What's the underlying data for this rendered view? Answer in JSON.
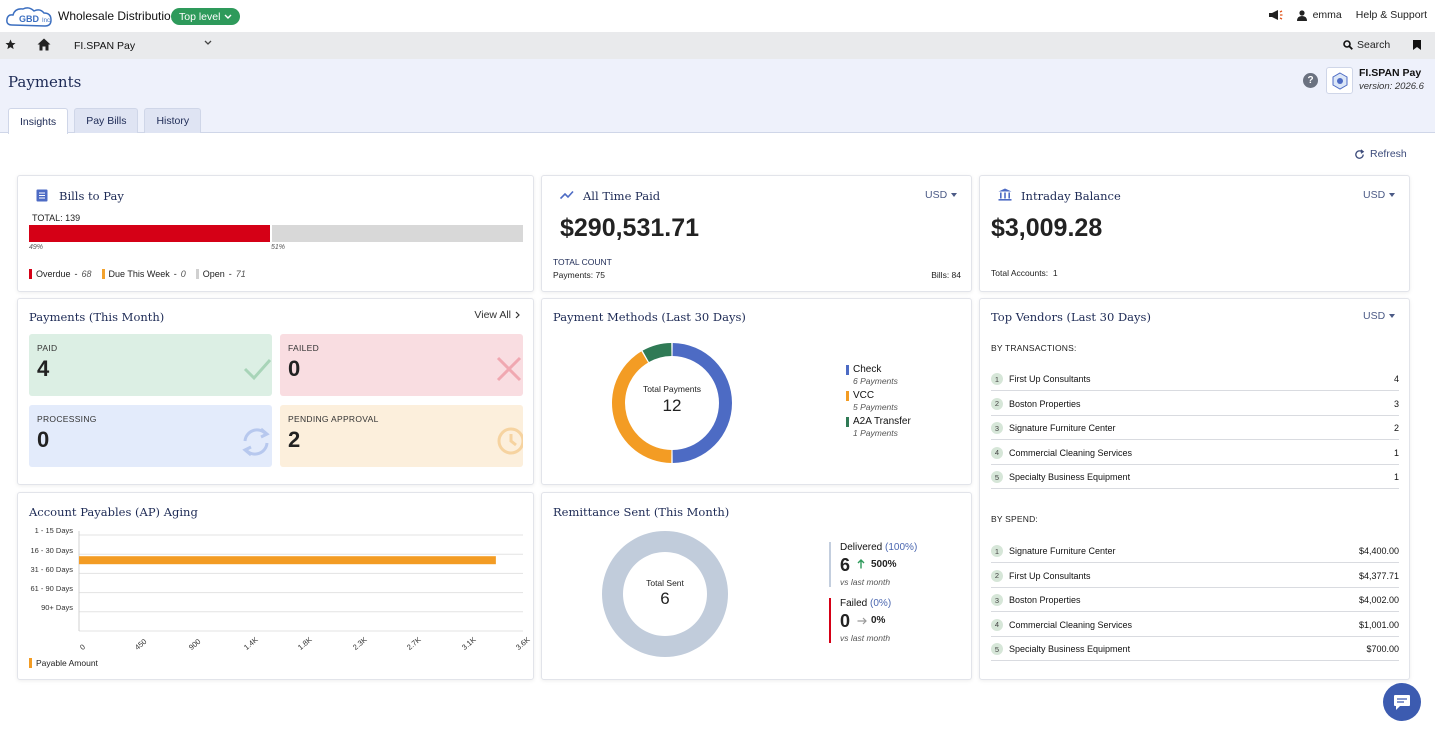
{
  "topbar": {
    "logo_text": "GBD Inc",
    "app_title": "Wholesale Distribution",
    "level_pill": "Top level",
    "user": "emma",
    "help": "Help & Support"
  },
  "navbar": {
    "app_name": "FI.SPAN Pay",
    "search": "Search"
  },
  "header": {
    "title": "Payments",
    "product": "FI.SPAN Pay",
    "version": "version: 2026.6",
    "help_icon": "?",
    "tabs": [
      "Insights",
      "Pay Bills",
      "History"
    ]
  },
  "refresh_label": "Refresh",
  "bills_to_pay": {
    "title": "Bills to Pay",
    "total": "TOTAL: 139",
    "overdue_pct_label": "49%",
    "open_pct_label": "51%",
    "overdue_fraction": 0.49,
    "legend": [
      {
        "label": "Overdue",
        "value": "68",
        "color": "#d50016"
      },
      {
        "label": "Due This Week",
        "value": "0",
        "color": "#f3a22c"
      },
      {
        "label": "Open",
        "value": "71",
        "color": "#d0d0d0"
      }
    ]
  },
  "all_time_paid": {
    "title": "All Time Paid",
    "currency": "USD",
    "amount": "$290,531.71",
    "total_count_label": "TOTAL COUNT",
    "payments": "Payments: 75",
    "bills": "Bills: 84"
  },
  "intraday": {
    "title": "Intraday Balance",
    "currency": "USD",
    "amount": "$3,009.28",
    "accounts_label": "Total Accounts:",
    "accounts_value": "1"
  },
  "payments_month": {
    "title": "Payments (This Month)",
    "view_all": "View All",
    "tiles": [
      {
        "label": "PAID",
        "value": "4",
        "bg": "#dcefe4",
        "icon": "check-icon"
      },
      {
        "label": "FAILED",
        "value": "0",
        "bg": "#f9dde1",
        "icon": "x-icon"
      },
      {
        "label": "PROCESSING",
        "value": "0",
        "bg": "#e3ebfb",
        "icon": "sync-icon"
      },
      {
        "label": "PENDING APPROVAL",
        "value": "2",
        "bg": "#fcefdc",
        "icon": "clock-icon"
      }
    ]
  },
  "payment_methods": {
    "title": "Payment Methods (Last 30 Days)",
    "center_label": "Total Payments",
    "center_value": "12",
    "legend": [
      {
        "name": "Check",
        "sub": "6 Payments",
        "color": "#4d6bc4"
      },
      {
        "name": "VCC",
        "sub": "5 Payments",
        "color": "#f39c24"
      },
      {
        "name": "A2A Transfer",
        "sub": "1 Payments",
        "color": "#2f7a55"
      }
    ]
  },
  "top_vendors": {
    "title": "Top Vendors (Last 30 Days)",
    "currency": "USD",
    "by_transactions_label": "BY TRANSACTIONS:",
    "by_transactions": [
      {
        "rank": "1",
        "name": "First Up Consultants",
        "value": "4"
      },
      {
        "rank": "2",
        "name": "Boston Properties",
        "value": "3"
      },
      {
        "rank": "3",
        "name": "Signature Furniture Center",
        "value": "2"
      },
      {
        "rank": "4",
        "name": "Commercial Cleaning Services",
        "value": "1"
      },
      {
        "rank": "5",
        "name": "Specialty Business Equipment",
        "value": "1"
      }
    ],
    "by_spend_label": "BY SPEND:",
    "by_spend": [
      {
        "rank": "1",
        "name": "Signature Furniture Center",
        "value": "$4,400.00"
      },
      {
        "rank": "2",
        "name": "First Up Consultants",
        "value": "$4,377.71"
      },
      {
        "rank": "3",
        "name": "Boston Properties",
        "value": "$4,002.00"
      },
      {
        "rank": "4",
        "name": "Commercial Cleaning Services",
        "value": "$1,001.00"
      },
      {
        "rank": "5",
        "name": "Specialty Business Equipment",
        "value": "$700.00"
      }
    ]
  },
  "ap_aging": {
    "title": "Account Payables (AP) Aging",
    "legend": "Payable Amount"
  },
  "chart_data": [
    {
      "type": "bar",
      "orientation": "horizontal",
      "categories": [
        "1 - 15 Days",
        "16 - 30 Days",
        "31 - 60 Days",
        "61 - 90 Days",
        "90+ Days"
      ],
      "series": [
        {
          "name": "Payable Amount",
          "values": [
            0,
            3380,
            0,
            0,
            0
          ],
          "color": "#f39c24"
        }
      ],
      "x_ticks": [
        "0",
        "450",
        "900",
        "1.4K",
        "1.8K",
        "2.3K",
        "2.7K",
        "3.1K",
        "3.6K"
      ],
      "xlim": [
        0,
        3600
      ],
      "legend": "bottom-left",
      "grid": true
    },
    {
      "type": "pie",
      "title": "Payment Methods (Last 30 Days)",
      "categories": [
        "Check",
        "VCC",
        "A2A Transfer"
      ],
      "values": [
        6,
        5,
        1
      ]
    },
    {
      "type": "pie",
      "title": "Remittance Sent (This Month)",
      "categories": [
        "Delivered",
        "Failed"
      ],
      "values": [
        6,
        0
      ]
    }
  ],
  "remittance": {
    "title": "Remittance Sent (This Month)",
    "center_label": "Total Sent",
    "center_value": "6",
    "delivered": {
      "label": "Delivered",
      "pct": "(100%)",
      "value": "6",
      "change": "500%",
      "sub": "vs last month"
    },
    "failed": {
      "label": "Failed",
      "pct": "(0%)",
      "value": "0",
      "change": "0%",
      "sub": "vs last month"
    }
  },
  "colors": {
    "primary_navy": "#1d2a55",
    "green": "#2e9a5b",
    "red": "#d50016",
    "orange": "#f39c24",
    "blue": "#4d6bc4"
  }
}
